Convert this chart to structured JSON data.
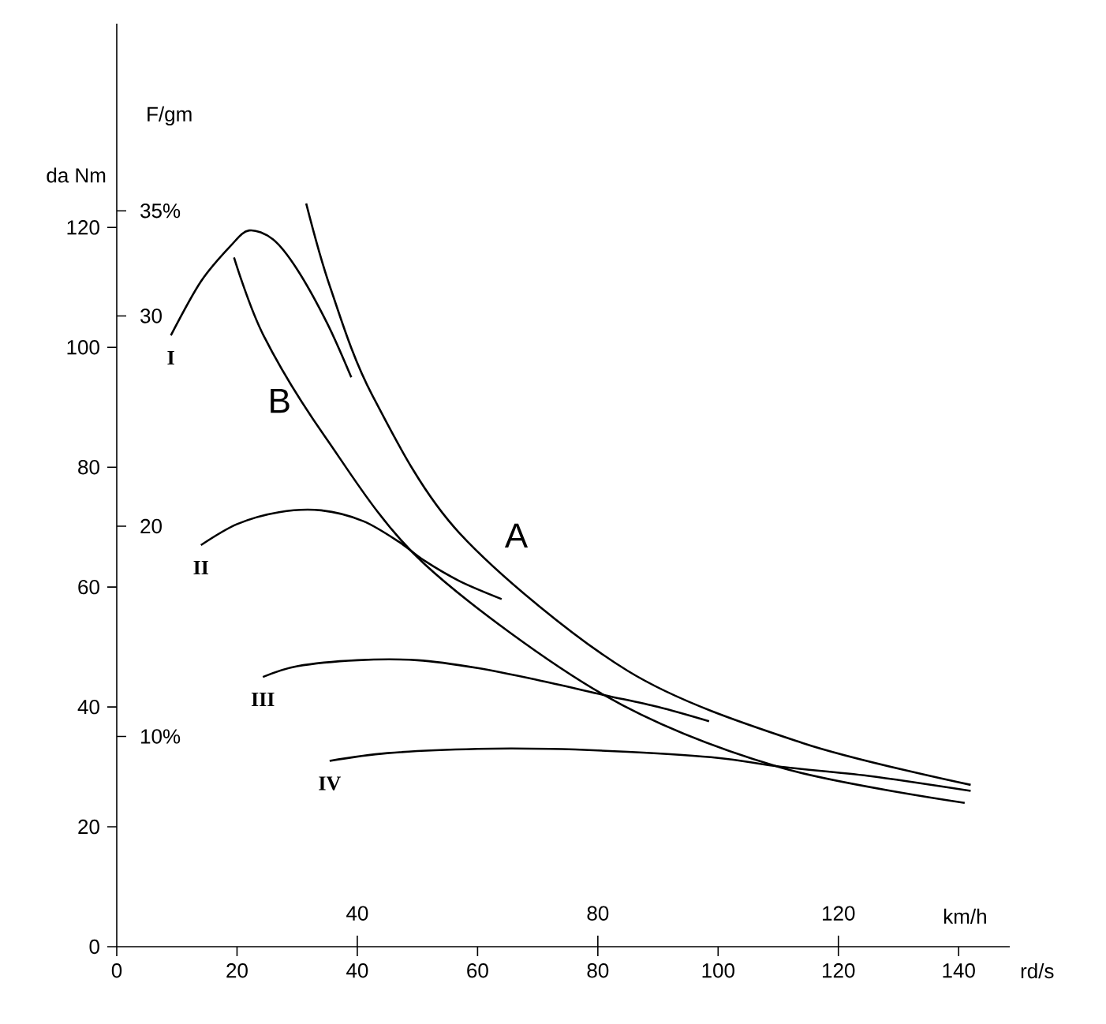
{
  "chart_data": {
    "type": "line",
    "ylabel": "da Nm",
    "y2label": "F/gm",
    "xlabel": "rd/s",
    "x2label": "km/h",
    "xlim": [
      0,
      148.5
    ],
    "xticks": [
      0,
      20,
      40,
      60,
      80,
      100,
      120,
      140
    ],
    "x2lim": [
      0,
      148.5
    ],
    "x2ticks": [
      40,
      80,
      120
    ],
    "ylim": [
      0,
      154
    ],
    "yticks": [
      0,
      20,
      40,
      60,
      80,
      100,
      120
    ],
    "y2lim": [
      0,
      43.9
    ],
    "y2ticks": [
      {
        "value": 10,
        "label": "10%"
      },
      20,
      30,
      {
        "value": 35,
        "label": "35%"
      }
    ],
    "grid": false,
    "series": [
      {
        "name": "I",
        "color": "#000000",
        "x": [
          9,
          14,
          19,
          22,
          26,
          30,
          35,
          39
        ],
        "values": [
          102,
          111,
          117,
          119.5,
          118,
          113,
          104,
          95
        ]
      },
      {
        "name": "II",
        "color": "#000000",
        "x": [
          14,
          20,
          27,
          34,
          41,
          47,
          51,
          57,
          64
        ],
        "values": [
          67,
          70.5,
          72.5,
          72.8,
          71,
          67.5,
          64.5,
          61,
          58
        ]
      },
      {
        "name": "III",
        "color": "#000000",
        "x": [
          24.3,
          30,
          40,
          50,
          60,
          70,
          81,
          90,
          98.5
        ],
        "values": [
          45,
          46.8,
          47.8,
          47.8,
          46.5,
          44.5,
          42,
          40,
          37.6
        ]
      },
      {
        "name": "IV",
        "color": "#000000",
        "x": [
          35.4,
          45,
          60,
          72,
          85,
          100,
          110.5,
          125,
          142
        ],
        "values": [
          31,
          32.3,
          33,
          33,
          32.5,
          31.5,
          30,
          28.5,
          26
        ]
      },
      {
        "name": "A",
        "color": "#000000",
        "x": [
          31.5,
          35.5,
          42.5,
          57,
          85,
          114,
          142
        ],
        "values": [
          124,
          110,
          92,
          69,
          46,
          34,
          27
        ]
      },
      {
        "name": "B",
        "color": "#000000",
        "x": [
          19.5,
          24.4,
          34.7,
          51,
          81,
          110,
          141
        ],
        "values": [
          115,
          102,
          85,
          64,
          42,
          30,
          24
        ]
      }
    ]
  }
}
